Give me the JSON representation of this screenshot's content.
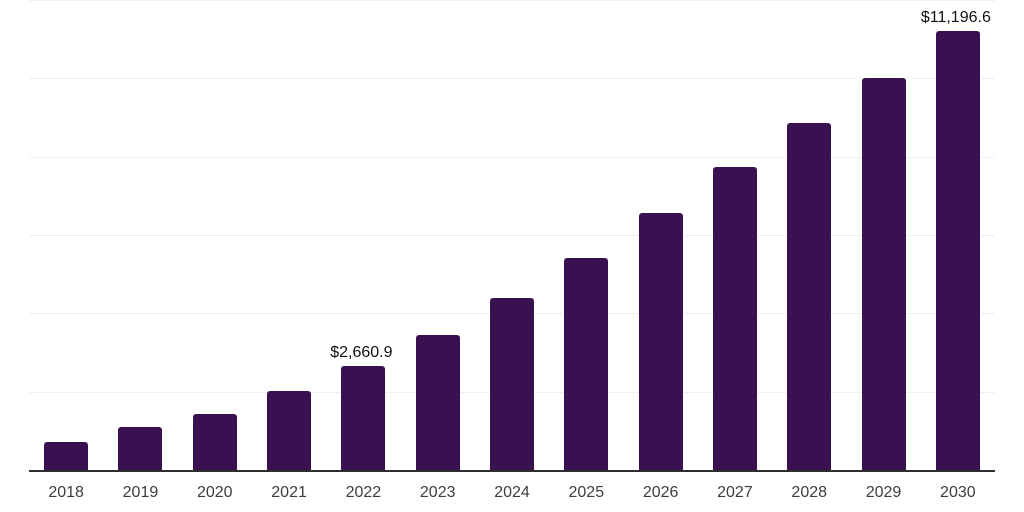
{
  "chart_data": {
    "type": "bar",
    "title": "",
    "xlabel": "",
    "ylabel": "",
    "categories": [
      "2018",
      "2019",
      "2020",
      "2021",
      "2022",
      "2023",
      "2024",
      "2025",
      "2026",
      "2027",
      "2028",
      "2029",
      "2030"
    ],
    "values": [
      720,
      1100,
      1435,
      2020,
      2660.9,
      3455,
      4390,
      5415,
      6555,
      7745,
      8870,
      10010,
      11196.6
    ],
    "point_labels": [
      "",
      "",
      "",
      "",
      "$2,660.9",
      "",
      "",
      "",
      "",
      "",
      "",
      "",
      "$11,196.6"
    ],
    "ylim": [
      0,
      12000
    ],
    "gridline_step": 2000,
    "grid": "horizontal-only",
    "legend": "none",
    "y_tick_labels_visible": false,
    "colors": {
      "bar": "#3a1150",
      "gridline": "#efefef",
      "axis": "#2e2e2e",
      "tick_label": "#3d3d3d",
      "data_label": "#111111",
      "background": "#ffffff"
    }
  }
}
